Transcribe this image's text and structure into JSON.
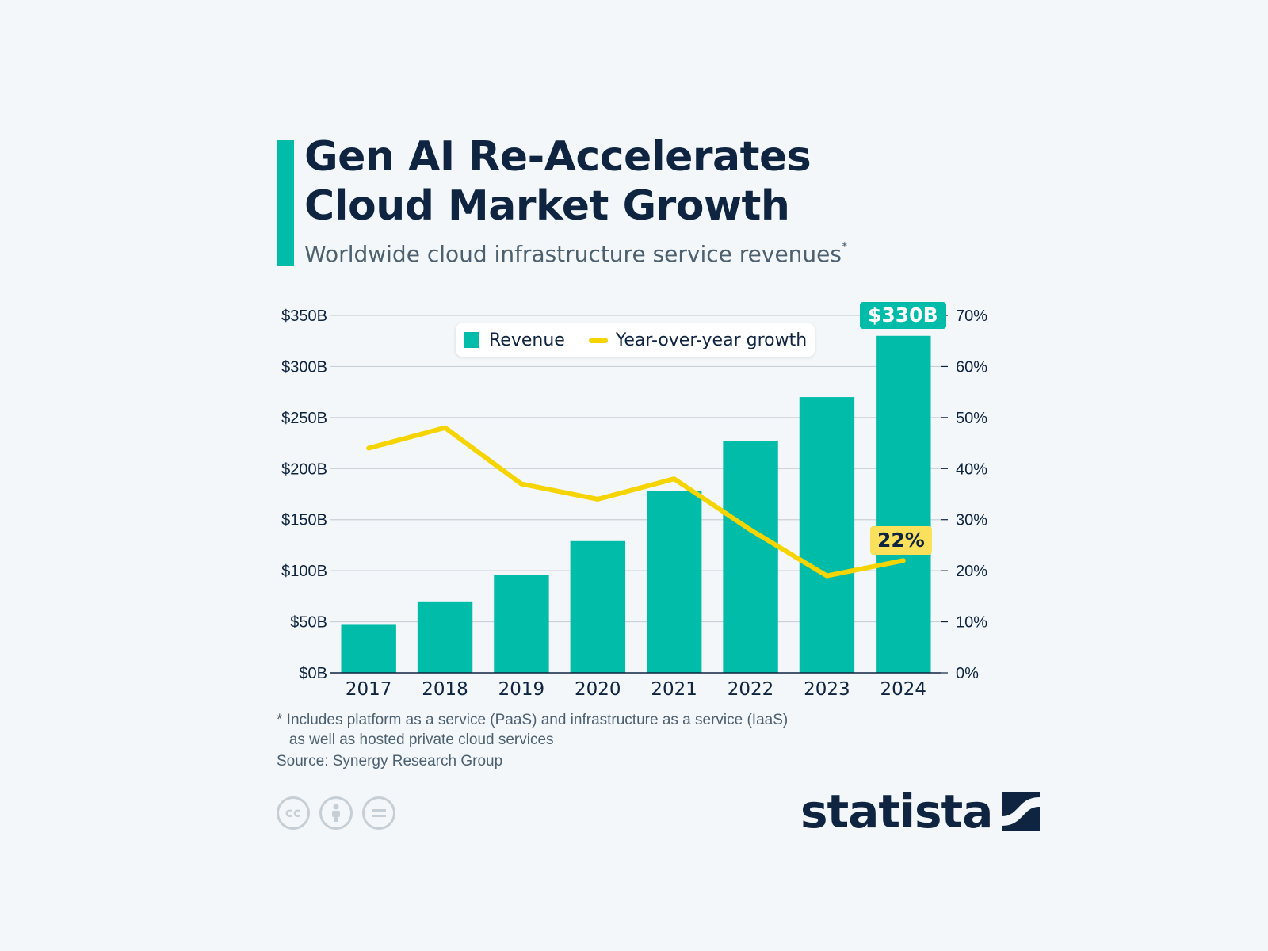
{
  "header": {
    "title_line1": "Gen AI Re-Accelerates",
    "title_line2": "Cloud Market Growth",
    "subtitle": "Worldwide cloud infrastructure service revenues",
    "subtitle_mark": "*"
  },
  "legend": {
    "revenue": "Revenue",
    "growth": "Year-over-year growth"
  },
  "callouts": {
    "revenue_2024": "$330B",
    "growth_2024": "22%"
  },
  "footer": {
    "note": "* Includes platform as a service (PaaS) and infrastructure as a service (IaaS)\n   as well as hosted private cloud services",
    "source": "Source: Synergy Research Group",
    "brand": "statista"
  },
  "colors": {
    "background": "#f3f7fa",
    "bars": "#00bca8",
    "growth_line": "#f5d400",
    "text": "#0e2440"
  },
  "license_icons": [
    "cc-icon",
    "attribution-icon",
    "no-derivatives-icon"
  ],
  "chart_data": {
    "type": "bar",
    "categories": [
      "2017",
      "2018",
      "2019",
      "2020",
      "2021",
      "2022",
      "2023",
      "2024"
    ],
    "series": [
      {
        "name": "Revenue",
        "type": "bar",
        "axis": "left",
        "values": [
          47,
          70,
          96,
          129,
          178,
          227,
          270,
          330
        ]
      },
      {
        "name": "Year-over-year growth",
        "type": "line",
        "axis": "right",
        "values": [
          44,
          48,
          37,
          34,
          38,
          28,
          19,
          22
        ]
      }
    ],
    "y_left": {
      "ticks": [
        "$0B",
        "$50B",
        "$100B",
        "$150B",
        "$200B",
        "$250B",
        "$300B",
        "$350B"
      ],
      "range": [
        0,
        350
      ]
    },
    "y_right": {
      "ticks": [
        "0%",
        "10%",
        "20%",
        "30%",
        "40%",
        "50%",
        "60%",
        "70%"
      ],
      "range": [
        0,
        70
      ]
    },
    "grid": true,
    "legend_position": "top"
  }
}
